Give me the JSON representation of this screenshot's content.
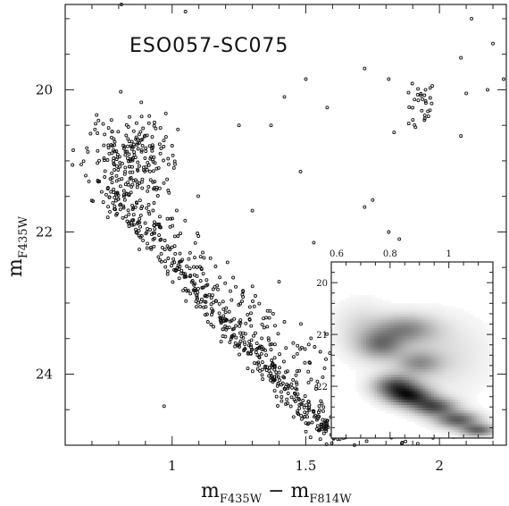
{
  "chart_data": [
    {
      "type": "scatter",
      "title": "ESO057-SC075",
      "xlabel": {
        "main": "m",
        "sub1": "F435W",
        "mid": " − m",
        "sub2": "F814W"
      },
      "ylabel": {
        "main": "m",
        "sub": "F435W"
      },
      "xlim": [
        0.6,
        2.25
      ],
      "ylim": [
        25.0,
        18.8
      ],
      "y_inverted": true,
      "x_ticks": [
        1,
        1.5,
        2
      ],
      "x_tick_labels": [
        "1",
        "1.5",
        "2"
      ],
      "y_ticks": [
        20,
        22,
        24
      ],
      "y_tick_labels": [
        "20",
        "22",
        "24"
      ],
      "sequences": {
        "main_sequence": {
          "from": [
            0.75,
            21.4
          ],
          "to": [
            1.62,
            25.0
          ],
          "width": 0.05,
          "count": 650
        },
        "blue_clump": {
          "center": [
            0.85,
            21.0
          ],
          "spread": [
            0.08,
            0.35
          ],
          "count": 230
        },
        "red_clump": {
          "center": [
            1.93,
            20.2
          ],
          "spread": [
            0.03,
            0.15
          ],
          "count": 30
        }
      },
      "field_points": [
        [
          0.81,
          18.8
        ],
        [
          1.05,
          18.9
        ],
        [
          1.22,
          18.75
        ],
        [
          2.12,
          19.0
        ],
        [
          2.2,
          19.35
        ],
        [
          2.08,
          19.55
        ],
        [
          1.72,
          19.7
        ],
        [
          1.81,
          19.85
        ],
        [
          1.5,
          19.85
        ],
        [
          1.58,
          20.25
        ],
        [
          1.42,
          20.1
        ],
        [
          2.18,
          20.0
        ],
        [
          2.24,
          19.85
        ],
        [
          1.83,
          20.6
        ],
        [
          1.25,
          20.5
        ],
        [
          1.37,
          20.5
        ],
        [
          1.75,
          21.55
        ],
        [
          1.72,
          21.65
        ],
        [
          1.81,
          22.0
        ],
        [
          1.85,
          22.1
        ],
        [
          1.48,
          21.15
        ],
        [
          1.53,
          22.15
        ],
        [
          2.08,
          20.65
        ],
        [
          0.63,
          20.85
        ],
        [
          0.66,
          21.05
        ],
        [
          0.97,
          24.45
        ],
        [
          1.3,
          21.7
        ],
        [
          1.4,
          22.7
        ],
        [
          2.1,
          20.05
        ]
      ]
    },
    {
      "type": "heatmap",
      "title": "",
      "xlim": [
        0.6,
        1.15
      ],
      "ylim": [
        23.0,
        19.6
      ],
      "x_ticks": [
        0.6,
        0.8,
        1
      ],
      "x_tick_labels": [
        "0.6",
        "0.8",
        "1"
      ],
      "y_ticks": [
        20,
        21,
        22
      ],
      "y_tick_labels": [
        "20",
        "21",
        "22"
      ],
      "density_components": [
        {
          "center": [
            0.77,
            21.2
          ],
          "sx": 0.05,
          "sy": 0.18,
          "weight": 0.55
        },
        {
          "center": [
            0.85,
            20.9
          ],
          "sx": 0.07,
          "sy": 0.18,
          "weight": 0.5
        },
        {
          "center": [
            0.9,
            21.55
          ],
          "sx": 0.05,
          "sy": 0.15,
          "weight": 0.4
        },
        {
          "center": [
            0.82,
            22.0
          ],
          "sx": 0.05,
          "sy": 0.15,
          "weight": 0.8
        },
        {
          "center": [
            0.87,
            22.2
          ],
          "sx": 0.05,
          "sy": 0.13,
          "weight": 0.9
        },
        {
          "center": [
            0.95,
            22.4
          ],
          "sx": 0.05,
          "sy": 0.12,
          "weight": 0.8
        },
        {
          "center": [
            1.03,
            22.65
          ],
          "sx": 0.05,
          "sy": 0.11,
          "weight": 0.75
        },
        {
          "center": [
            1.1,
            22.85
          ],
          "sx": 0.04,
          "sy": 0.08,
          "weight": 0.7
        },
        {
          "center": [
            0.95,
            21.4
          ],
          "sx": 0.12,
          "sy": 0.5,
          "weight": 0.15
        },
        {
          "center": [
            0.7,
            20.9
          ],
          "sx": 0.06,
          "sy": 0.35,
          "weight": 0.15
        }
      ]
    }
  ]
}
